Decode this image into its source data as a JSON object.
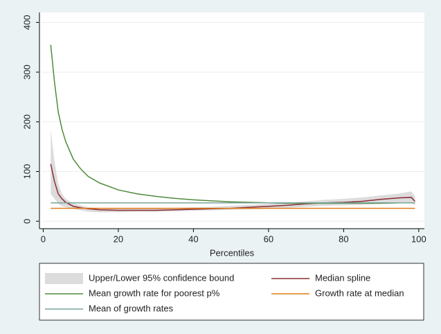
{
  "chart_data": {
    "type": "line",
    "x_label": "Percentiles",
    "x": [
      2,
      3,
      4,
      5,
      6,
      8,
      10,
      12,
      15,
      20,
      25,
      30,
      35,
      40,
      45,
      50,
      55,
      60,
      65,
      70,
      75,
      80,
      85,
      90,
      95,
      98,
      99
    ],
    "series": [
      {
        "name": "Upper/Lower 95% confidence bound",
        "color": "#dcdcdc",
        "kind": "band",
        "upper": [
          185,
          120,
          75,
          55,
          45,
          36,
          32,
          28,
          26,
          25,
          25,
          26,
          27,
          28,
          29,
          31,
          33,
          35,
          37,
          40,
          43,
          45,
          48,
          52,
          56,
          60,
          50
        ],
        "lower": [
          55,
          45,
          35,
          30,
          28,
          25,
          22,
          19,
          18,
          18,
          19,
          19,
          20,
          21,
          22,
          23,
          24,
          25,
          27,
          29,
          31,
          32,
          33,
          35,
          37,
          38,
          32
        ]
      },
      {
        "name": "Median spline",
        "color": "#8b2b35",
        "values": [
          115,
          80,
          55,
          45,
          38,
          30,
          27,
          25,
          23,
          22,
          22,
          22,
          23,
          24,
          25,
          26,
          28,
          30,
          32,
          35,
          37,
          38,
          40,
          44,
          47,
          48,
          40
        ]
      },
      {
        "name": "Mean growth rate for poorest p%",
        "color": "#4f8a3b",
        "values": [
          355,
          280,
          220,
          185,
          160,
          125,
          105,
          90,
          77,
          63,
          55,
          50,
          46,
          43,
          41,
          39,
          38,
          37,
          36,
          36,
          36,
          36,
          36,
          36,
          37,
          37,
          37
        ]
      },
      {
        "name": "Growth rate at median",
        "color": "#e07b1a",
        "values": [
          26,
          26,
          26,
          26,
          26,
          26,
          26,
          26,
          26,
          26,
          26,
          26,
          26,
          26,
          26,
          26,
          26,
          26,
          26,
          26,
          26,
          26,
          26,
          26,
          26,
          26,
          26
        ]
      },
      {
        "name": "Mean of growth rates",
        "color": "#7aa49a",
        "values": [
          37,
          37,
          37,
          37,
          37,
          37,
          37,
          37,
          37,
          37,
          37,
          37,
          37,
          37,
          37,
          37,
          37,
          37,
          37,
          37,
          37,
          37,
          37,
          37,
          37,
          37,
          37
        ]
      }
    ],
    "xlim": [
      -1,
      101.5
    ],
    "ylim": [
      -15,
      420
    ],
    "xticks": [
      0,
      20,
      40,
      60,
      80,
      100
    ],
    "yticks": [
      0,
      100,
      200,
      300,
      400
    ],
    "grid": true
  }
}
